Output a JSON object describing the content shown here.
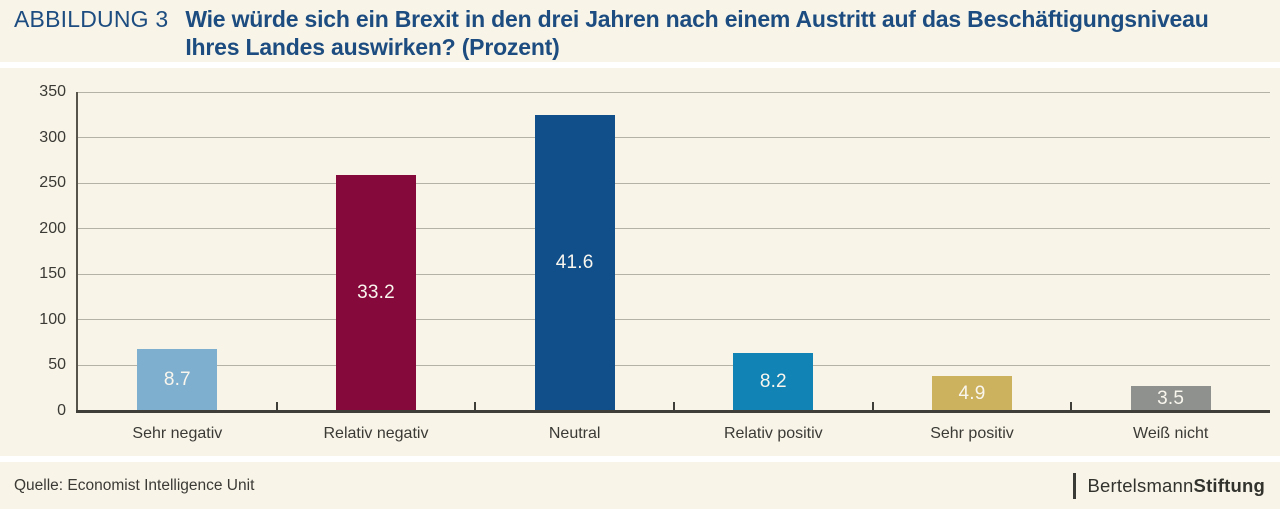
{
  "header": {
    "figure_label": "ABBILDUNG 3",
    "title_line1": "Wie würde sich ein Brexit in den drei Jahren nach einem Austritt auf das Beschäftigungsniveau",
    "title_line2": "Ihres Landes auswirken? (Prozent)"
  },
  "chart_data": {
    "type": "bar",
    "title": "Wie würde sich ein Brexit in den drei Jahren nach einem Austritt auf das Beschäftigungsniveau Ihres Landes auswirken? (Prozent)",
    "categories": [
      "Sehr negativ",
      "Relativ negativ",
      "Neutral",
      "Relativ positiv",
      "Sehr positiv",
      "Weiß nicht"
    ],
    "values": [
      8.7,
      33.2,
      41.6,
      8.2,
      4.9,
      3.5
    ],
    "value_labels": [
      "8.7",
      "33.2",
      "41.6",
      "8.2",
      "4.9",
      "3.5"
    ],
    "bar_colors": [
      "#7fafce",
      "#86093b",
      "#114f8b",
      "#1183b5",
      "#ccb15f",
      "#8f918e"
    ],
    "xlabel": "",
    "ylabel": "",
    "ylim": [
      0,
      350
    ],
    "yticks": [
      0,
      50,
      100,
      150,
      200,
      250,
      300,
      350
    ],
    "bar_axis_scale_factor": 7.8,
    "grid": true,
    "legend": false,
    "value_label_color": "#f9f6ee"
  },
  "footer": {
    "source": "Quelle: Economist Intelligence Unit",
    "brand_regular": "Bertelsmann",
    "brand_bold": "Stiftung"
  },
  "colors": {
    "background_beige": "#f8f4e8",
    "title_navy": "#1d4d80",
    "text_dark": "#3b3a35",
    "gridline": "#b4b1a6",
    "y_axis_line": "#57544c",
    "x_axis_line": "#403e39"
  }
}
